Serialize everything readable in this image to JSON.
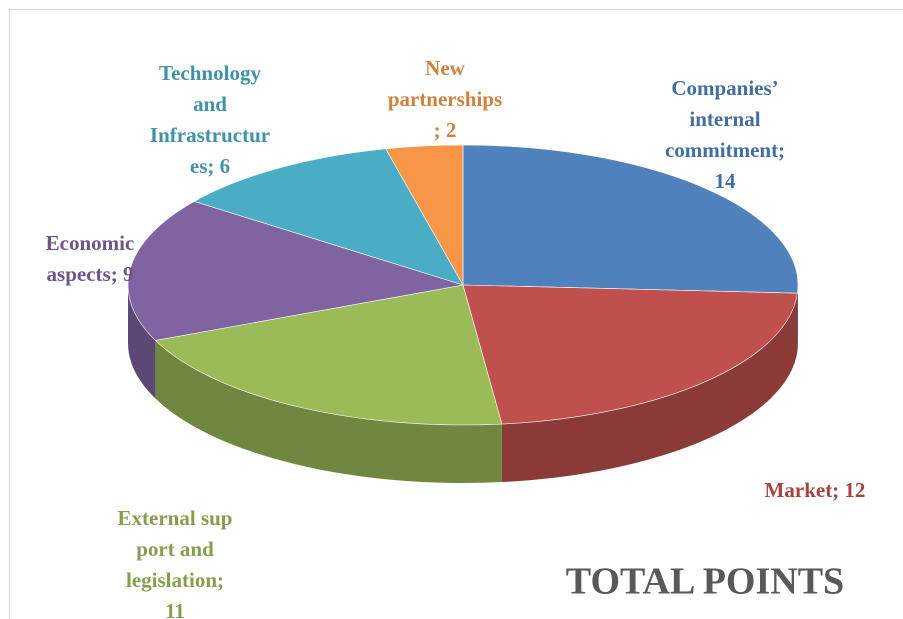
{
  "chart_data": {
    "type": "pie",
    "title": "TOTAL POINTS",
    "values": [
      14,
      12,
      11,
      9,
      6,
      2
    ],
    "value_labels": [
      [
        "Companies’",
        "internal",
        "commitment;",
        "14"
      ],
      [
        "Market; 12"
      ],
      [
        "External sup",
        "port and",
        "legislation;",
        "11"
      ],
      [
        "Economic",
        "aspects; 9"
      ],
      [
        "Technology",
        "and",
        "Infrastructur",
        "es; 6"
      ],
      [
        "New",
        "partnerships",
        "; 2"
      ]
    ],
    "colors": [
      "#4f81bd",
      "#c0504d",
      "#9bbb59",
      "#8064a2",
      "#4bacc6",
      "#f79646"
    ]
  }
}
